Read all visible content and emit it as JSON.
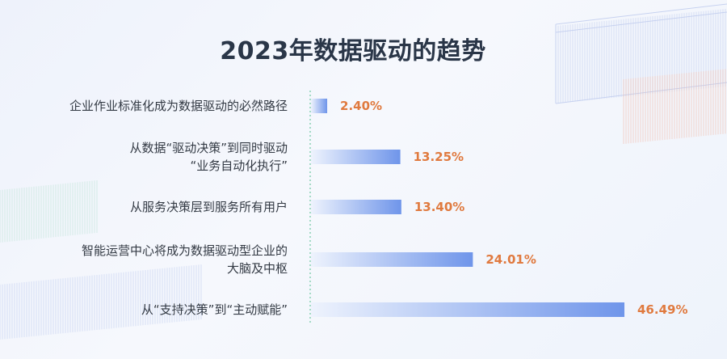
{
  "chart_data": {
    "type": "bar",
    "orientation": "horizontal",
    "title": "2023年数据驱动的趋势",
    "categories": [
      [
        "企业作业标准化成为数据驱动的必然路径"
      ],
      [
        "从数据“驱动决策”到同时驱动",
        "“业务自动化执行”"
      ],
      [
        "从服务决策层到服务所有用户"
      ],
      [
        "智能运营中心将成为数据驱动型企业的",
        "大脑及中枢"
      ],
      [
        "从“支持决策”到“主动赋能”"
      ]
    ],
    "values": [
      2.4,
      13.25,
      13.4,
      24.01,
      46.49
    ],
    "value_labels": [
      "2.40%",
      "13.25%",
      "13.40%",
      "24.01%",
      "46.49%"
    ],
    "unit": "%",
    "xlim": [
      0,
      46.49
    ],
    "grid": false,
    "legend": "none"
  },
  "colors": {
    "bar_start": "#eef3fd",
    "bar_end": "#6f95ea",
    "value_label": "#e07a3f",
    "axis_dotted": "#8fd3b8",
    "title": "#2a3648"
  }
}
